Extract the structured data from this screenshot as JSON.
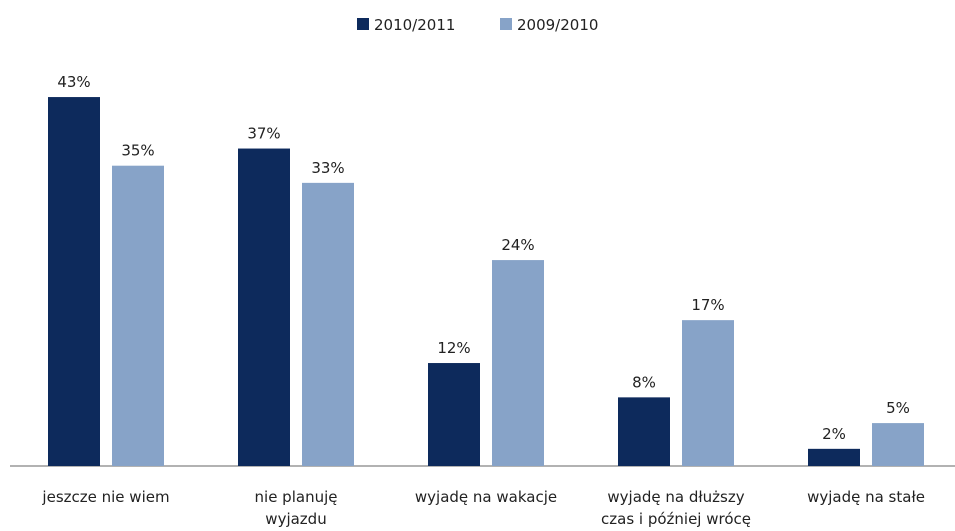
{
  "chart_data": {
    "type": "bar",
    "categories": [
      "jeszcze nie wiem",
      "nie planuję wyjazdu",
      "wyjadę na wakacje",
      "wyjadę na dłuższy czas i później wrócę",
      "wyjadę na stałe"
    ],
    "series": [
      {
        "name": "2010/2011",
        "color": "#0d2a5c",
        "values": [
          43,
          37,
          12,
          8,
          2
        ],
        "value_labels": [
          "43%",
          "37%",
          "12%",
          "8%",
          "2%"
        ]
      },
      {
        "name": "2009/2010",
        "color": "#87a3c8",
        "values": [
          35,
          33,
          24,
          17,
          5
        ],
        "value_labels": [
          "35%",
          "33%",
          "24%",
          "17%",
          "5%"
        ]
      }
    ],
    "legend": "top"
  }
}
